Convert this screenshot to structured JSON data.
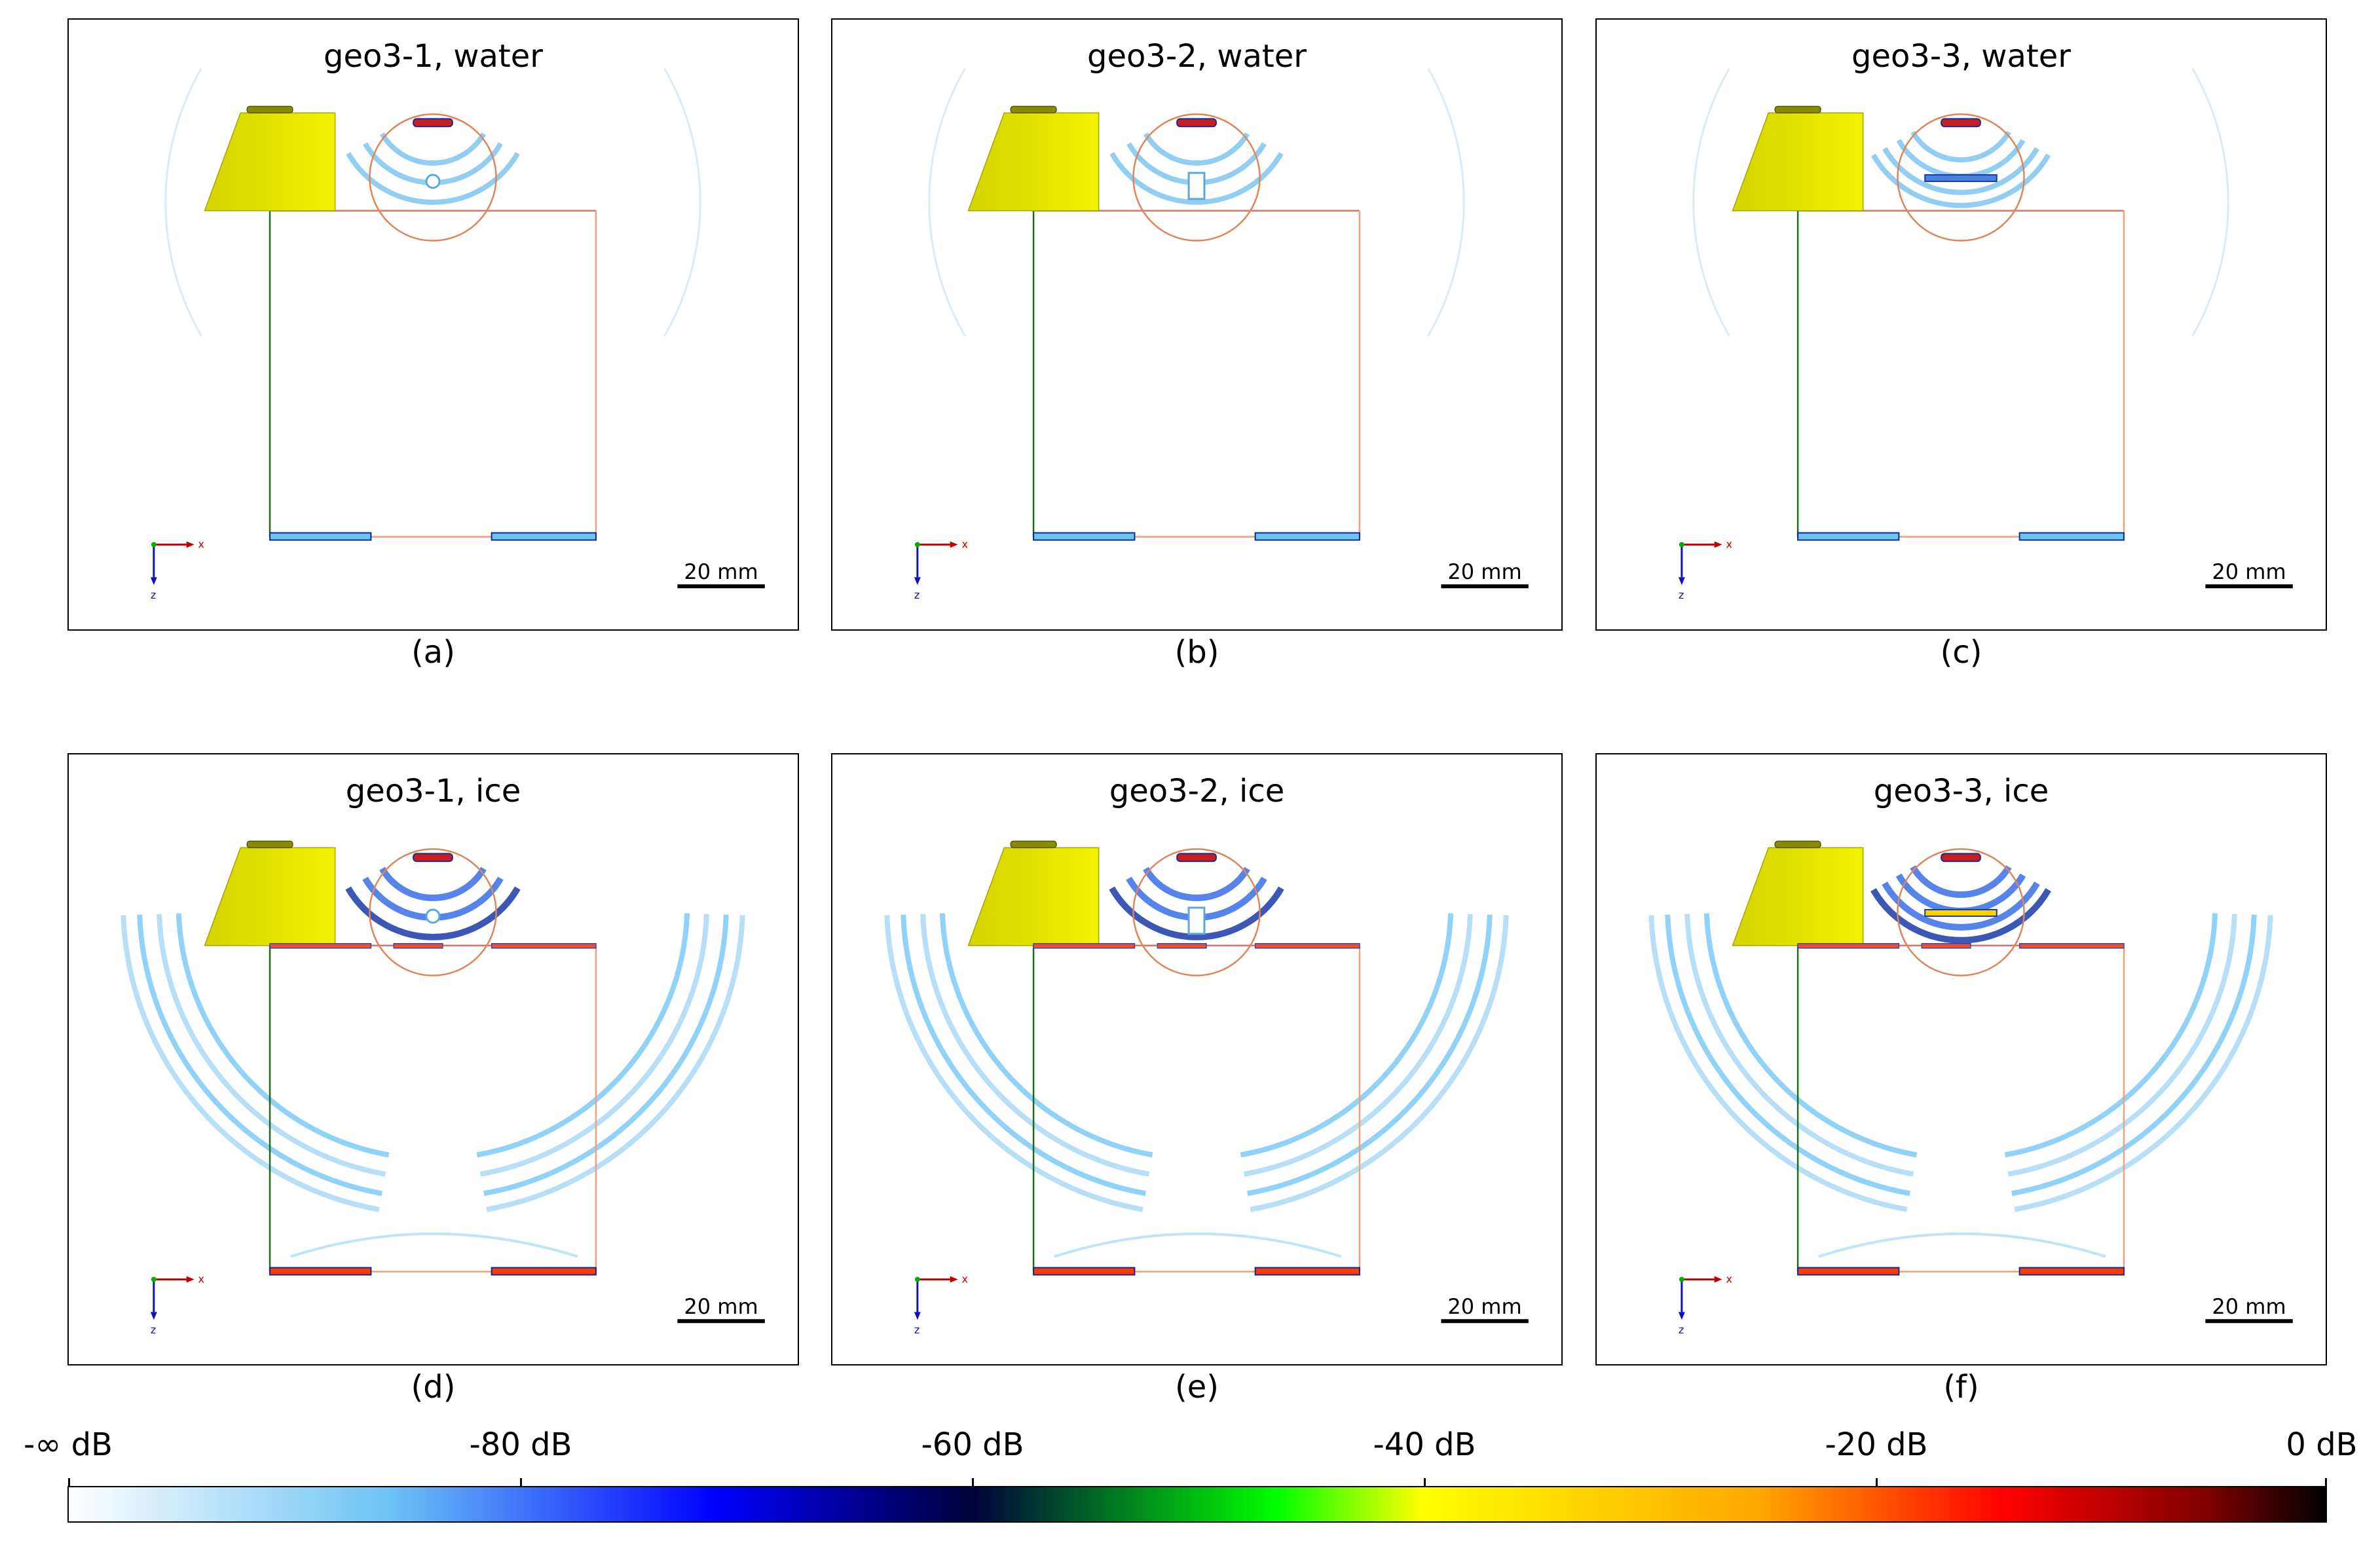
{
  "panels": [
    {
      "title": "geo3-1, water",
      "label": "(a)",
      "scale": "20 mm",
      "medium": "water",
      "variant": 1
    },
    {
      "title": "geo3-2, water",
      "label": "(b)",
      "scale": "20 mm",
      "medium": "water",
      "variant": 2
    },
    {
      "title": "geo3-3, water",
      "label": "(c)",
      "scale": "20 mm",
      "medium": "water",
      "variant": 3
    },
    {
      "title": "geo3-1, ice",
      "label": "(d)",
      "scale": "20 mm",
      "medium": "ice",
      "variant": 1
    },
    {
      "title": "geo3-2, ice",
      "label": "(e)",
      "scale": "20 mm",
      "medium": "ice",
      "variant": 2
    },
    {
      "title": "geo3-3, ice",
      "label": "(f)",
      "scale": "20 mm",
      "medium": "ice",
      "variant": 3
    }
  ],
  "axes": {
    "x": "x",
    "z": "z"
  },
  "colorbar": {
    "ticks": [
      "-∞ dB",
      "-80 dB",
      "-60 dB",
      "-40 dB",
      "-20 dB",
      "0 dB"
    ],
    "colors": [
      "#ffffff",
      "#6cc3f5",
      "#0000ff",
      "#00003c",
      "#00ff00",
      "#ffff00",
      "#ffa500",
      "#ff0000",
      "#000000"
    ]
  }
}
